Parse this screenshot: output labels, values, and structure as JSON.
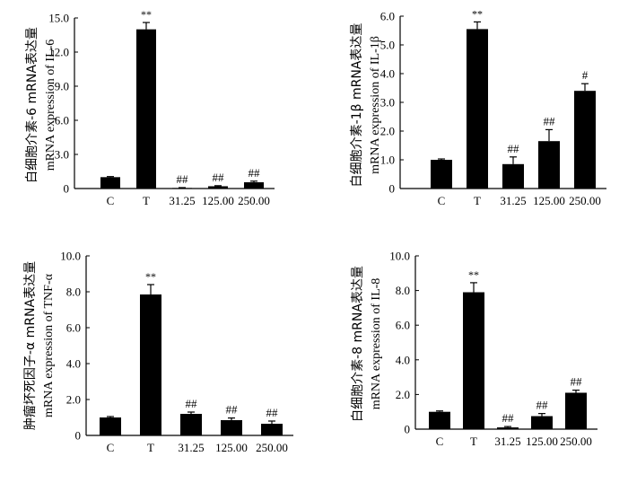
{
  "chart_data": [
    {
      "type": "bar",
      "ylabel_line1": "白细胞介素-6 mRNA表达量",
      "ylabel_line2": "mRNA expression of IL-6",
      "categories": [
        "C",
        "T",
        "31.25",
        "125.00",
        "250.00"
      ],
      "values": [
        1.0,
        14.0,
        0.05,
        0.2,
        0.55
      ],
      "errors": [
        0.05,
        0.6,
        0.03,
        0.05,
        0.1
      ],
      "annotations": [
        "",
        "**",
        "##",
        "##",
        "##"
      ],
      "yticks": [
        "0",
        "3.0",
        "6.0",
        "9.0",
        "12.0",
        "15.0"
      ],
      "ylim": [
        0,
        15
      ]
    },
    {
      "type": "bar",
      "ylabel_line1": "白细胞介素-1β mRNA表达量",
      "ylabel_line2": "mRNA expression of IL-1β",
      "categories": [
        "C",
        "T",
        "31.25",
        "125.00",
        "250.00"
      ],
      "values": [
        1.0,
        5.55,
        0.85,
        1.65,
        3.4
      ],
      "errors": [
        0.03,
        0.25,
        0.25,
        0.4,
        0.25
      ],
      "annotations": [
        "",
        "**",
        "##",
        "##",
        "#"
      ],
      "yticks": [
        "0",
        "1.0",
        "2.0",
        "3.0",
        "4.0",
        "5.0",
        "6.0"
      ],
      "ylim": [
        0,
        6
      ]
    },
    {
      "type": "bar",
      "ylabel_line1": "肿瘤坏死因子-α mRNA表达量",
      "ylabel_line2": "mRNA expression of TNF-α",
      "categories": [
        "C",
        "T",
        "31.25",
        "125.00",
        "250.00"
      ],
      "values": [
        1.0,
        7.85,
        1.2,
        0.85,
        0.65
      ],
      "errors": [
        0.05,
        0.55,
        0.1,
        0.12,
        0.15
      ],
      "annotations": [
        "",
        "**",
        "##",
        "##",
        "##"
      ],
      "yticks": [
        "0",
        "2.0",
        "4.0",
        "6.0",
        "8.0",
        "10.0"
      ],
      "ylim": [
        0,
        10
      ]
    },
    {
      "type": "bar",
      "ylabel_line1": "白细胞介素-8 mRNA表达量",
      "ylabel_line2": "mRNA expression of IL-8",
      "categories": [
        "C",
        "T",
        "31.25",
        "125.00",
        "250.00"
      ],
      "values": [
        1.0,
        7.9,
        0.1,
        0.75,
        2.1
      ],
      "errors": [
        0.05,
        0.55,
        0.05,
        0.15,
        0.15
      ],
      "annotations": [
        "",
        "**",
        "##",
        "##",
        "##"
      ],
      "yticks": [
        "0",
        "2.0",
        "4.0",
        "6.0",
        "8.0",
        "10.0"
      ],
      "ylim": [
        0,
        10
      ]
    }
  ]
}
